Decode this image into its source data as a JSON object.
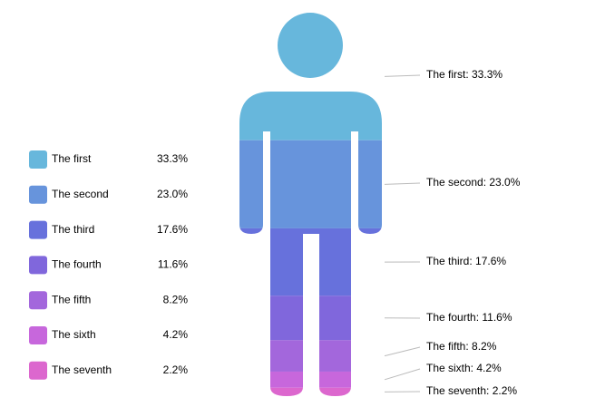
{
  "chart_data": {
    "type": "pictorial",
    "categories": [
      "The first",
      "The second",
      "The third",
      "The fourth",
      "The fifth",
      "The sixth",
      "The seventh"
    ],
    "values": [
      33.3,
      23.0,
      17.6,
      11.6,
      8.2,
      4.2,
      2.2
    ],
    "value_labels": [
      "33.3%",
      "23.0%",
      "17.6%",
      "11.6%",
      "8.2%",
      "4.2%",
      "2.2%"
    ],
    "callout_labels": [
      "The first: 33.3%",
      "The second: 23.0%",
      "The third: 17.6%",
      "The fourth: 11.6%",
      "The fifth: 8.2%",
      "The sixth: 4.2%",
      "The seventh: 2.2%"
    ],
    "colors": [
      "#67b7dc",
      "#6794dc",
      "#6771dc",
      "#8067dc",
      "#a367dc",
      "#c767dc",
      "#dc67ce"
    ],
    "legend": "left"
  }
}
